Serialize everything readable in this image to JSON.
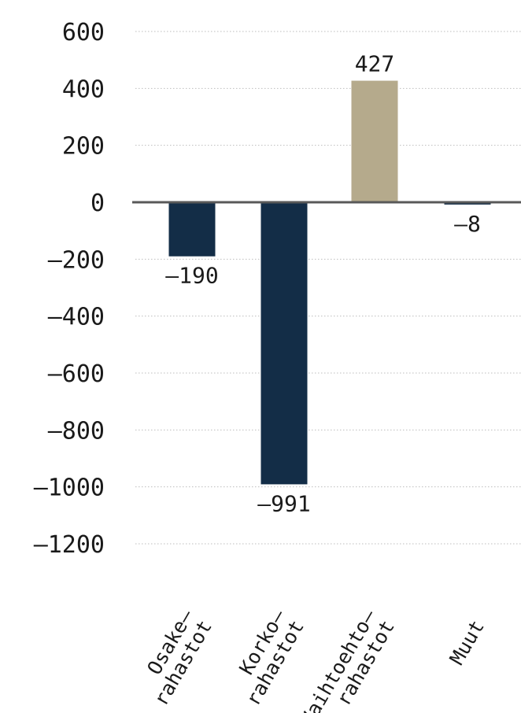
{
  "chart_data": {
    "type": "bar",
    "categories": [
      [
        "Osake–",
        "rahastot"
      ],
      [
        "Korko–",
        "rahastot"
      ],
      [
        "Vaihtoehto–",
        "rahastot"
      ],
      [
        "Muut"
      ]
    ],
    "values": [
      -190,
      -991,
      427,
      -8
    ],
    "value_labels": [
      "–190",
      "–991",
      "427",
      "–8"
    ],
    "bar_colors": [
      "#132d47",
      "#132d47",
      "#b5aa8c",
      "#132d47"
    ],
    "yticks": [
      600,
      400,
      200,
      0,
      -200,
      -400,
      -600,
      -800,
      -1000,
      -1200
    ],
    "ytick_labels": [
      "600",
      "400",
      "200",
      "0",
      "–200",
      "–400",
      "–600",
      "–800",
      "–1000",
      "–1200"
    ],
    "ylim": [
      -1200,
      600
    ],
    "grid": "dotted horizontal",
    "zero_line_color": "#595959",
    "grid_color": "#bdbdbd"
  }
}
